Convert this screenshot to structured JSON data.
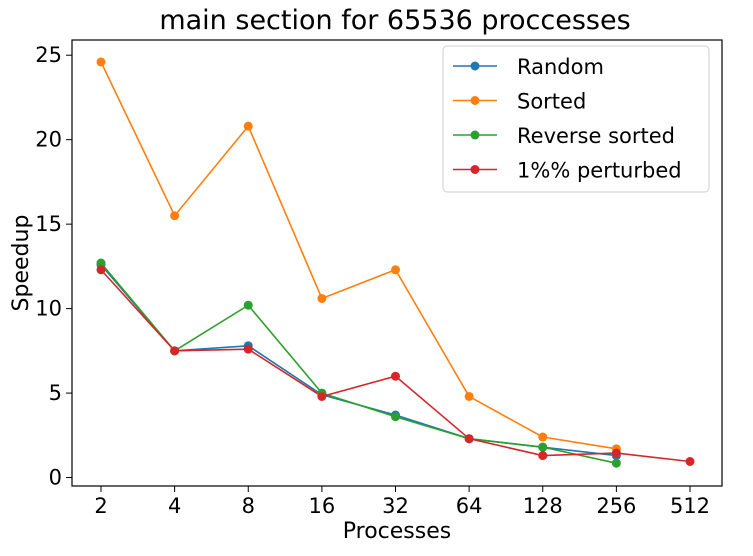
{
  "chart_data": {
    "type": "line",
    "title": "main section for 65536 proccesses",
    "xlabel": "Processes",
    "ylabel": "Speedup",
    "categories": [
      "2",
      "4",
      "8",
      "16",
      "32",
      "64",
      "128",
      "256",
      "512"
    ],
    "yticks": [
      "0",
      "5",
      "10",
      "15",
      "20",
      "25"
    ],
    "ylim": [
      -0.5,
      25.9
    ],
    "grid": false,
    "legend_position": "top-right",
    "series": [
      {
        "name": "Random",
        "color": "#1f77b4",
        "values": [
          12.6,
          7.5,
          7.8,
          4.9,
          3.7,
          2.3,
          1.8,
          1.3,
          null
        ]
      },
      {
        "name": "Sorted",
        "color": "#ff7f0e",
        "values": [
          24.6,
          15.5,
          20.8,
          10.6,
          12.3,
          4.8,
          2.4,
          1.7,
          null
        ]
      },
      {
        "name": "Reverse sorted",
        "color": "#2ca02c",
        "values": [
          12.7,
          7.5,
          10.2,
          5.0,
          3.6,
          2.3,
          1.8,
          0.85,
          null
        ]
      },
      {
        "name": "1%% perturbed",
        "color": "#d62728",
        "values": [
          12.3,
          7.5,
          7.6,
          4.8,
          6.0,
          2.3,
          1.3,
          1.45,
          0.95
        ]
      }
    ]
  }
}
